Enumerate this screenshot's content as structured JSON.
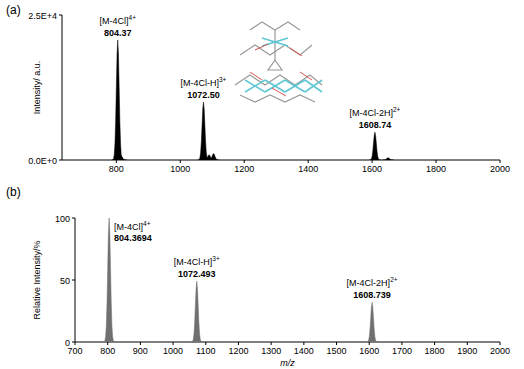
{
  "chart_data": [
    {
      "type": "bar",
      "title": "(a)",
      "y_label": "Intensity/ a.u.",
      "color": "#000000",
      "x": [
        804.37,
        815,
        1072.5,
        1090,
        1104,
        1608.74,
        1650
      ],
      "values": [
        20700,
        700,
        10000,
        900,
        1100,
        4800,
        400
      ],
      "xlim": [
        630,
        2000
      ],
      "xticks": [
        800,
        1000,
        1200,
        1400,
        1600,
        1800,
        2000
      ],
      "ylim": [
        0,
        25000
      ],
      "yticks": [
        {
          "value": 0,
          "label": "0.0E+0"
        },
        {
          "value": 25000,
          "label": "2.5E+4"
        }
      ],
      "annotations": [
        {
          "ion": "[M-4Cl]",
          "charge": "4+",
          "value": 804.37,
          "label": "804.37"
        },
        {
          "ion": "[M-4Cl-H]",
          "charge": "3+",
          "value": 1072.5,
          "label": "1072.50"
        },
        {
          "ion": "[M-4Cl-2H]",
          "charge": "2+",
          "value": 1608.74,
          "label": "1608.74"
        }
      ]
    },
    {
      "type": "bar",
      "title": "(b)",
      "y_label": "Relative Intensity/%",
      "x_label": "m/z",
      "color": "#707070",
      "x": [
        804.3694,
        1072.493,
        1608.739
      ],
      "values": [
        100,
        49,
        32
      ],
      "xlim": [
        700,
        2000
      ],
      "xticks": [
        700,
        800,
        900,
        1000,
        1100,
        1200,
        1300,
        1400,
        1500,
        1600,
        1700,
        1800,
        1900,
        2000
      ],
      "ylim": [
        0,
        100
      ],
      "yticks": [
        0,
        50,
        100
      ],
      "annotations": [
        {
          "ion": "[M-4Cl]",
          "charge": "4+",
          "value": 804.3694,
          "label": "804.3694"
        },
        {
          "ion": "[M-4Cl-H]",
          "charge": "3+",
          "value": 1072.493,
          "label": "1072.493"
        },
        {
          "ion": "[M-4Cl-2H]",
          "charge": "2+",
          "value": 1608.739,
          "label": "1608.739"
        }
      ]
    }
  ]
}
